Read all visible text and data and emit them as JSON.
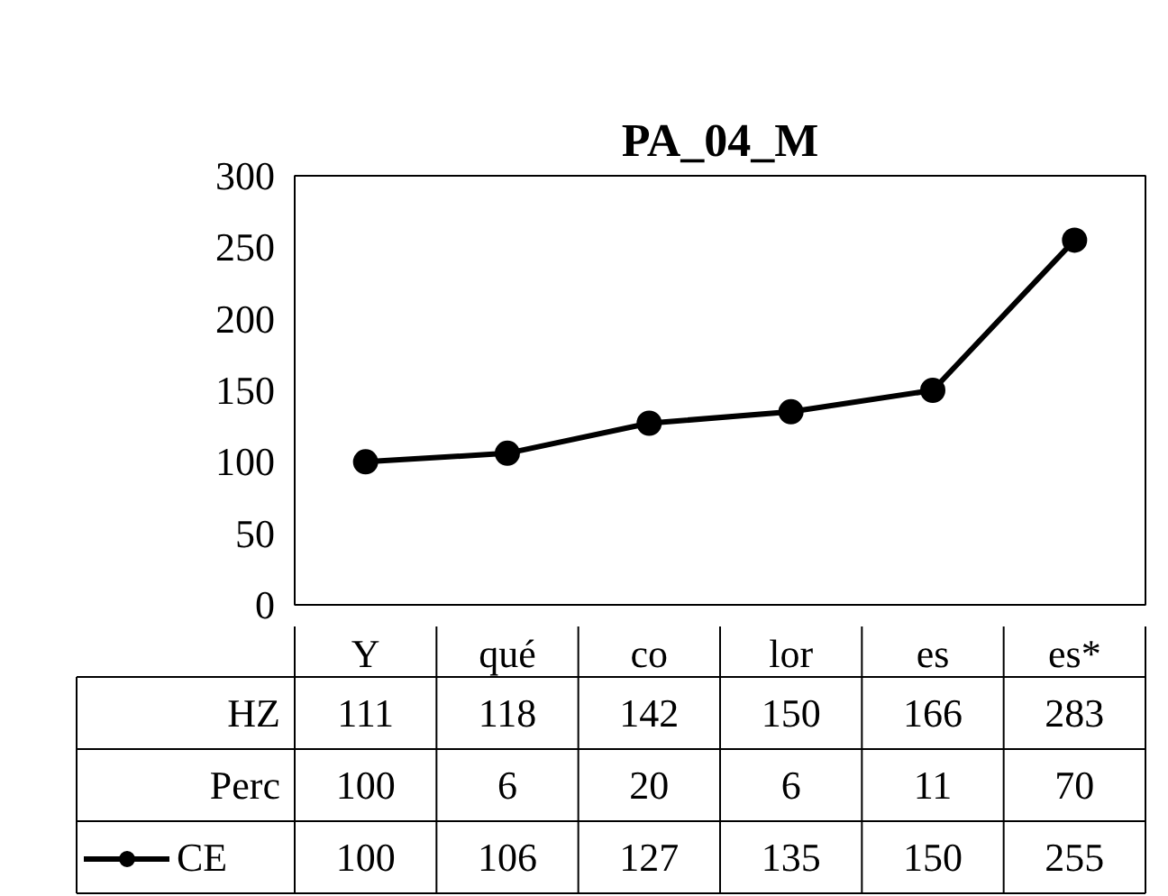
{
  "chart_data": {
    "type": "line",
    "title": "PA_04_M",
    "categories": [
      "Y",
      "qué",
      "co",
      "lor",
      "es",
      "es*"
    ],
    "series": [
      {
        "name": "CE",
        "color": "#000000",
        "values": [
          100,
          106,
          127,
          135,
          150,
          255
        ]
      }
    ],
    "annotations": [
      "HZ",
      "111",
      "118",
      "142",
      "150",
      "166",
      "283",
      "Perc",
      "100",
      "6",
      "20",
      "6",
      "11",
      "70"
    ],
    "ylim": [
      0,
      300
    ],
    "yticks": [
      0,
      50,
      100,
      150,
      200,
      250,
      300
    ],
    "grid": false,
    "legend": "bottom",
    "marker": "circle",
    "line_style": "solid",
    "data_labels": true
  }
}
